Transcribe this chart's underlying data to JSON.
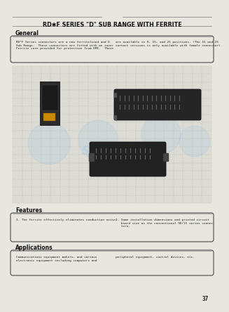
{
  "bg_color": "#e8e6df",
  "page_color": "#e8e6df",
  "title": "RD✱F SERIES \"D\" SUB RANGE WITH FERRITE",
  "title_fontsize": 6.0,
  "title_color": "#111111",
  "section_general": "General",
  "section_features": "Features",
  "section_applications": "Applications",
  "general_text_left": "RD*F Series connectors are a new ferritelined and D\nSub Range.  These connectors are fitted with an inner\nFerrite core provided for protection from EMI.  These",
  "general_text_right": "are available in 9, 15, and 25 positions. (The 15 and 25\ncontact versions is only available with female connector).",
  "features_text_left": "1. The ferrite effectively eliminates conduction noise.",
  "features_text_right": "2. Same installation dimensions and printed circuit\n   board size as the conventional 9D/15 series connec-\n   tors.",
  "applications_text_left": "Communications equipment makers, and various\nelectronic equipment including computers and",
  "applications_text_right": "peripheral equipment, control devices, etc.",
  "page_number": "37",
  "line_color": "#777777",
  "box_edge_color": "#333333",
  "grid_color": "#bbbbaa",
  "watermark_text": "SITU",
  "watermark_color": "#aac8e0"
}
